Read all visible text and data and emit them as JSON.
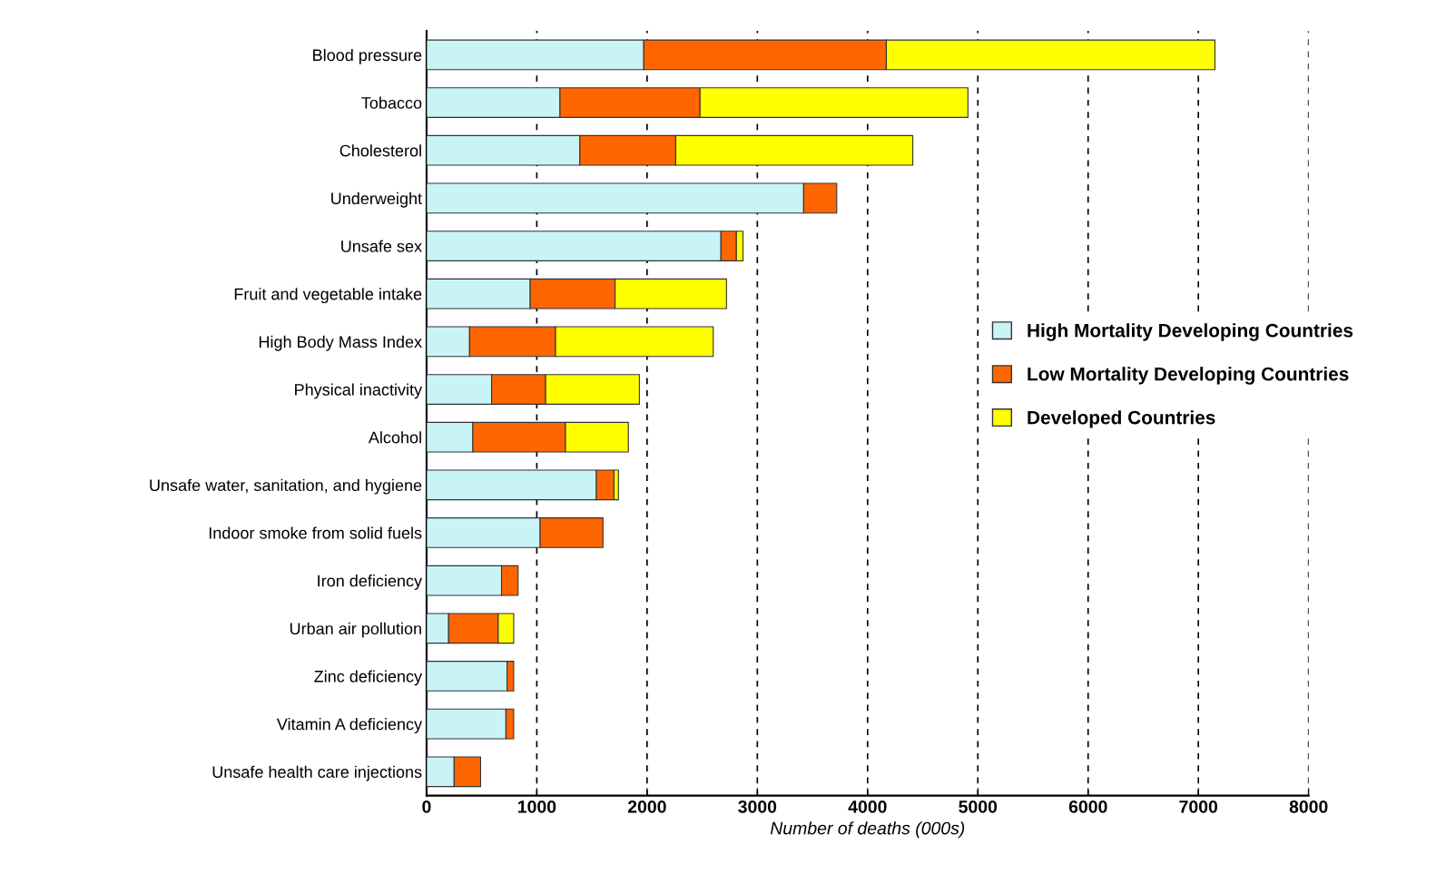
{
  "chart_data": {
    "type": "bar",
    "orientation": "horizontal",
    "stacked": true,
    "xlabel": "Number of deaths (000s)",
    "categories": [
      "Blood pressure",
      "Tobacco",
      "Cholesterol",
      "Underweight",
      "Unsafe sex",
      "Fruit and vegetable intake",
      "High Body Mass Index",
      "Physical inactivity",
      "Alcohol",
      "Unsafe water, sanitation, and hygiene",
      "Indoor smoke from solid fuels",
      "Iron deficiency",
      "Urban air pollution",
      "Zinc deficiency",
      "Vitamin A deficiency",
      "Unsafe health care injections"
    ],
    "series": [
      {
        "name": "High Mortality Developing Countries",
        "color": "#c8f4f8",
        "values": [
          1970,
          1210,
          1390,
          3420,
          2670,
          940,
          390,
          590,
          420,
          1540,
          1030,
          680,
          200,
          730,
          720,
          250
        ]
      },
      {
        "name": "Low Mortality Developing Countries",
        "color": "#ff6600",
        "values": [
          2200,
          1270,
          870,
          300,
          140,
          770,
          780,
          490,
          840,
          160,
          570,
          150,
          450,
          60,
          70,
          240
        ]
      },
      {
        "name": "Developed Countries",
        "color": "#ffff00",
        "values": [
          2980,
          2430,
          2150,
          null,
          60,
          1010,
          1430,
          850,
          570,
          40,
          null,
          null,
          140,
          null,
          null,
          null
        ]
      }
    ],
    "xlim": [
      0,
      8000
    ],
    "xticks": [
      0,
      1000,
      2000,
      3000,
      4000,
      5000,
      6000,
      7000,
      8000
    ],
    "grid": "x",
    "legend": "right"
  }
}
